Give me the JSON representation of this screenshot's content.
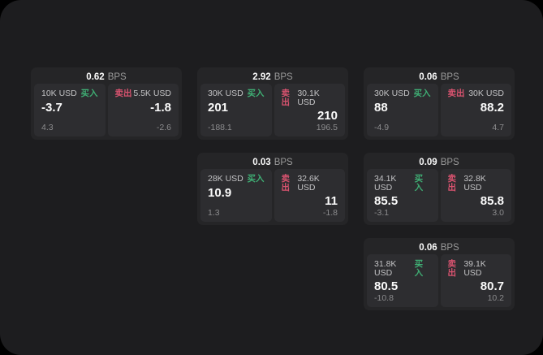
{
  "labels": {
    "bps": "BPS",
    "buy": "买入",
    "sell": "卖出"
  },
  "colors": {
    "buy": "#3fae74",
    "sell": "#d9536f",
    "surface": "#1d1d1f",
    "card": "#252527",
    "panel": "#2d2d30"
  },
  "cards": [
    {
      "row": 1,
      "col": 1,
      "bps": "0.62",
      "buy": {
        "amount": "10K USD",
        "value": "-3.7",
        "sub": "4.3"
      },
      "sell": {
        "amount": "5.5K USD",
        "value": "-1.8",
        "sub": "-2.6"
      }
    },
    {
      "row": 1,
      "col": 2,
      "bps": "2.92",
      "buy": {
        "amount": "30K USD",
        "value": "201",
        "sub": "-188.1"
      },
      "sell": {
        "amount": "30.1K USD",
        "value": "210",
        "sub": "196.5"
      }
    },
    {
      "row": 1,
      "col": 3,
      "bps": "0.06",
      "buy": {
        "amount": "30K USD",
        "value": "88",
        "sub": "-4.9"
      },
      "sell": {
        "amount": "30K USD",
        "value": "88.2",
        "sub": "4.7"
      }
    },
    {
      "row": 2,
      "col": 2,
      "bps": "0.03",
      "buy": {
        "amount": "28K USD",
        "value": "10.9",
        "sub": "1.3"
      },
      "sell": {
        "amount": "32.6K USD",
        "value": "11",
        "sub": "-1.8"
      }
    },
    {
      "row": 2,
      "col": 3,
      "bps": "0.09",
      "buy": {
        "amount": "34.1K USD",
        "value": "85.5",
        "sub": "-3.1"
      },
      "sell": {
        "amount": "32.8K USD",
        "value": "85.8",
        "sub": "3.0"
      }
    },
    {
      "row": 3,
      "col": 3,
      "bps": "0.06",
      "buy": {
        "amount": "31.8K USD",
        "value": "80.5",
        "sub": "-10.8"
      },
      "sell": {
        "amount": "39.1K USD",
        "value": "80.7",
        "sub": "10.2"
      }
    }
  ]
}
